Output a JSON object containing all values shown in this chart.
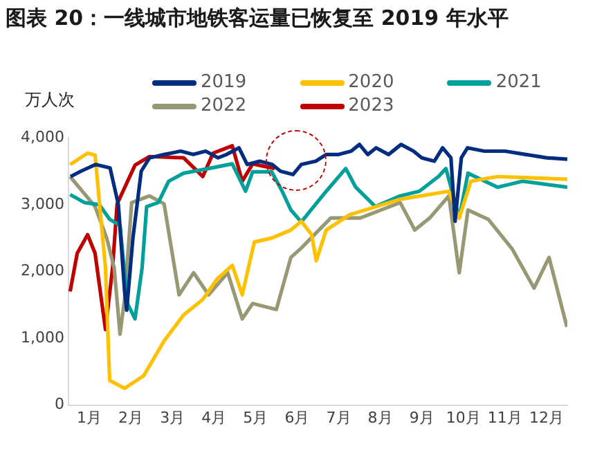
{
  "chart_data": {
    "type": "line",
    "title": "图表 20：一线城市地铁客运量已恢复至 2019 年水平",
    "ylabel": "万人次",
    "legend": "top",
    "grid": false,
    "marker": "none",
    "xlim": [
      0,
      12
    ],
    "xticks": [
      {
        "value": 0.5,
        "label": "1月"
      },
      {
        "value": 1.5,
        "label": "2月"
      },
      {
        "value": 2.5,
        "label": "3月"
      },
      {
        "value": 3.5,
        "label": "4月"
      },
      {
        "value": 4.5,
        "label": "5月"
      },
      {
        "value": 5.5,
        "label": "6月"
      },
      {
        "value": 6.5,
        "label": "7月"
      },
      {
        "value": 7.5,
        "label": "8月"
      },
      {
        "value": 8.5,
        "label": "9月"
      },
      {
        "value": 9.5,
        "label": "10月"
      },
      {
        "value": 10.5,
        "label": "11月"
      },
      {
        "value": 11.5,
        "label": "12月"
      }
    ],
    "ylim": [
      0,
      4000
    ],
    "yticks": [
      {
        "value": 0,
        "label": "0"
      },
      {
        "value": 1000,
        "label": "1,000"
      },
      {
        "value": 2000,
        "label": "2,000"
      },
      {
        "value": 3000,
        "label": "3,000"
      },
      {
        "value": 4000,
        "label": "4,000"
      }
    ],
    "series": [
      {
        "name": "2019",
        "color": "#002d7f",
        "x": [
          0.05,
          0.3,
          0.65,
          1.0,
          1.2,
          1.35,
          1.4,
          1.55,
          1.75,
          1.95,
          2.3,
          2.7,
          3.0,
          3.3,
          3.6,
          3.8,
          4.1,
          4.3,
          4.6,
          4.9,
          5.1,
          5.4,
          5.6,
          5.95,
          6.2,
          6.5,
          6.8,
          7.0,
          7.2,
          7.4,
          7.7,
          8.0,
          8.3,
          8.5,
          8.8,
          9.0,
          9.2,
          9.3,
          9.45,
          9.6,
          10.0,
          10.5,
          11.0,
          11.5,
          12.0
        ],
        "values": [
          3420,
          3500,
          3600,
          3550,
          3000,
          1700,
          1420,
          2500,
          3500,
          3700,
          3750,
          3800,
          3750,
          3800,
          3700,
          3750,
          3850,
          3600,
          3650,
          3600,
          3500,
          3450,
          3600,
          3650,
          3750,
          3750,
          3800,
          3900,
          3750,
          3850,
          3750,
          3900,
          3800,
          3700,
          3650,
          3850,
          3700,
          2750,
          3700,
          3850,
          3800,
          3800,
          3750,
          3700,
          3680
        ]
      },
      {
        "name": "2020",
        "color": "#ffc000",
        "x": [
          0.04,
          0.46,
          0.64,
          0.89,
          0.99,
          1.35,
          1.81,
          2.3,
          2.77,
          3.23,
          3.58,
          3.94,
          4.18,
          4.47,
          4.89,
          5.35,
          5.6,
          5.85,
          5.96,
          6.2,
          6.77,
          7.98,
          9.15,
          9.4,
          9.68,
          10.32,
          12.0
        ],
        "values": [
          3600,
          3770,
          3740,
          2050,
          370,
          250,
          440,
          960,
          1350,
          1580,
          1890,
          2090,
          1650,
          2440,
          2500,
          2620,
          2750,
          2550,
          2160,
          2620,
          2850,
          3080,
          3200,
          2800,
          3350,
          3420,
          3380
        ]
      },
      {
        "name": "2021",
        "color": "#00a09a",
        "x": [
          0.04,
          0.39,
          0.74,
          0.99,
          1.24,
          1.42,
          1.6,
          1.77,
          1.88,
          2.16,
          2.41,
          2.77,
          3.37,
          3.94,
          4.26,
          4.43,
          4.89,
          5.14,
          5.35,
          5.6,
          6.2,
          6.67,
          6.91,
          7.38,
          7.98,
          8.44,
          8.9,
          9.08,
          9.4,
          9.61,
          10.32,
          10.92,
          12.0
        ],
        "values": [
          3150,
          3030,
          3000,
          2780,
          2690,
          1520,
          1290,
          2050,
          2970,
          3030,
          3350,
          3470,
          3540,
          3610,
          3200,
          3490,
          3490,
          3200,
          2920,
          2740,
          3200,
          3540,
          3260,
          2970,
          3130,
          3200,
          3420,
          3540,
          2800,
          3470,
          3260,
          3350,
          3260
        ]
      },
      {
        "name": "2022",
        "color": "#999874",
        "x": [
          0.04,
          0.28,
          0.64,
          0.92,
          1.1,
          1.24,
          1.35,
          1.52,
          1.95,
          2.3,
          2.66,
          3.01,
          3.37,
          3.83,
          4.18,
          4.43,
          5.0,
          5.35,
          5.6,
          6.31,
          7.02,
          7.98,
          8.33,
          8.69,
          9.15,
          9.4,
          9.61,
          10.1,
          10.67,
          11.2,
          11.56,
          11.99
        ],
        "values": [
          3420,
          3240,
          2970,
          2500,
          2050,
          1060,
          1590,
          3030,
          3130,
          3010,
          1650,
          1980,
          1650,
          1980,
          1290,
          1520,
          1430,
          2210,
          2350,
          2800,
          2800,
          3030,
          2620,
          2800,
          3130,
          1980,
          2920,
          2780,
          2340,
          1750,
          2210,
          1170
        ]
      },
      {
        "name": "2023",
        "color": "#c00000",
        "x": [
          0.04,
          0.21,
          0.46,
          0.64,
          0.89,
          1.06,
          1.17,
          1.6,
          1.95,
          2.77,
          3.23,
          3.48,
          3.94,
          4.18,
          4.43,
          4.96
        ],
        "values": [
          1700,
          2270,
          2550,
          2270,
          1130,
          2050,
          3010,
          3590,
          3720,
          3700,
          3420,
          3770,
          3880,
          3350,
          3610,
          3540
        ]
      }
    ]
  }
}
